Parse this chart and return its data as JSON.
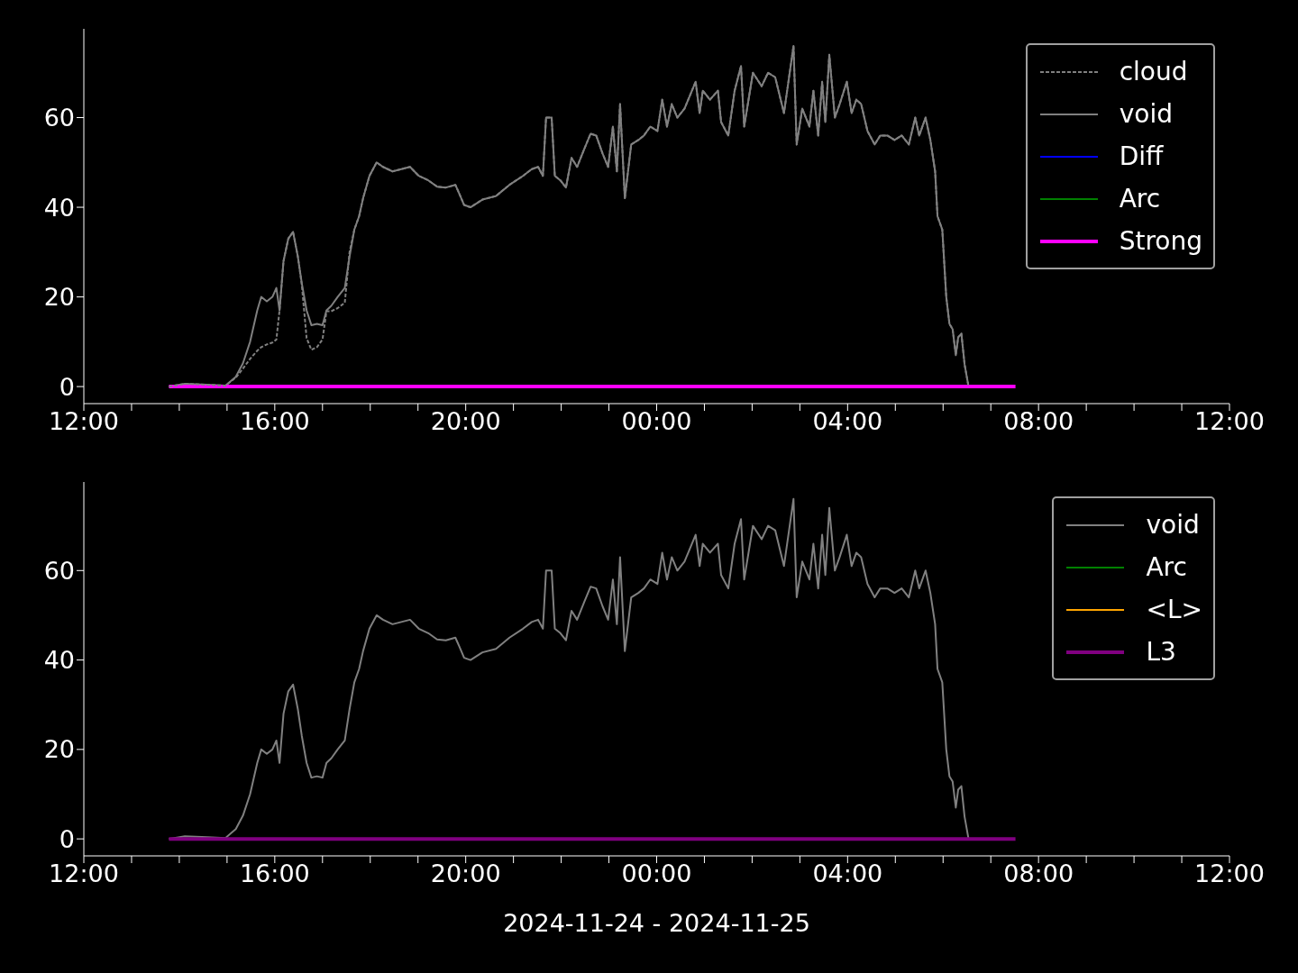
{
  "chart_data": [
    {
      "type": "line",
      "xlim": [
        "2024-11-24T12:00",
        "2024-11-25T12:00"
      ],
      "ylim": [
        -3.8,
        79.8
      ],
      "yticks": [
        0,
        20,
        40,
        60
      ],
      "xticks": [
        {
          "value": "2024-11-24T12:00",
          "label": "12:00"
        },
        {
          "value": "2024-11-24T13:00",
          "label": null
        },
        {
          "value": "2024-11-24T14:00",
          "label": null
        },
        {
          "value": "2024-11-24T15:00",
          "label": null
        },
        {
          "value": "2024-11-24T16:00",
          "label": "16:00"
        },
        {
          "value": "2024-11-24T17:00",
          "label": null
        },
        {
          "value": "2024-11-24T18:00",
          "label": null
        },
        {
          "value": "2024-11-24T19:00",
          "label": null
        },
        {
          "value": "2024-11-24T20:00",
          "label": "20:00"
        },
        {
          "value": "2024-11-24T21:00",
          "label": null
        },
        {
          "value": "2024-11-24T22:00",
          "label": null
        },
        {
          "value": "2024-11-24T23:00",
          "label": null
        },
        {
          "value": "2024-11-25T00:00",
          "label": "00:00"
        },
        {
          "value": "2024-11-25T01:00",
          "label": null
        },
        {
          "value": "2024-11-25T02:00",
          "label": null
        },
        {
          "value": "2024-11-25T03:00",
          "label": null
        },
        {
          "value": "2024-11-25T04:00",
          "label": "04:00"
        },
        {
          "value": "2024-11-25T05:00",
          "label": null
        },
        {
          "value": "2024-11-25T06:00",
          "label": null
        },
        {
          "value": "2024-11-25T07:00",
          "label": null
        },
        {
          "value": "2024-11-25T08:00",
          "label": "08:00"
        },
        {
          "value": "2024-11-25T09:00",
          "label": null
        },
        {
          "value": "2024-11-25T10:00",
          "label": null
        },
        {
          "value": "2024-11-25T11:00",
          "label": null
        },
        {
          "value": "2024-11-25T12:00",
          "label": "12:00"
        }
      ],
      "legend": "top right",
      "x": [
        "2024-11-24T13:47",
        "2024-11-24T14:07",
        "2024-11-24T14:35",
        "2024-11-24T14:58",
        "2024-11-24T15:11",
        "2024-11-24T15:20",
        "2024-11-24T15:29",
        "2024-11-24T15:38",
        "2024-11-24T15:43",
        "2024-11-24T15:50",
        "2024-11-24T15:57",
        "2024-11-24T16:02",
        "2024-11-24T16:06",
        "2024-11-24T16:11",
        "2024-11-24T16:17",
        "2024-11-24T16:23",
        "2024-11-24T16:29",
        "2024-11-24T16:34",
        "2024-11-24T16:40",
        "2024-11-24T16:46",
        "2024-11-24T16:53",
        "2024-11-24T17:00",
        "2024-11-24T17:05",
        "2024-11-24T17:11",
        "2024-11-24T17:19",
        "2024-11-24T17:28",
        "2024-11-24T17:34",
        "2024-11-24T17:40",
        "2024-11-24T17:46",
        "2024-11-24T17:51",
        "2024-11-24T17:59",
        "2024-11-24T18:08",
        "2024-11-24T18:16",
        "2024-11-24T18:28",
        "2024-11-24T18:39",
        "2024-11-24T18:50",
        "2024-11-24T19:01",
        "2024-11-24T19:13",
        "2024-11-24T19:24",
        "2024-11-24T19:35",
        "2024-11-24T19:47",
        "2024-11-24T19:52",
        "2024-11-24T19:58",
        "2024-11-24T20:06",
        "2024-11-24T20:21",
        "2024-11-24T20:38",
        "2024-11-24T20:55",
        "2024-11-24T21:12",
        "2024-11-24T21:23",
        "2024-11-24T21:31",
        "2024-11-24T21:37",
        "2024-11-24T21:41",
        "2024-11-24T21:48",
        "2024-11-24T21:52",
        "2024-11-24T21:59",
        "2024-11-24T22:06",
        "2024-11-24T22:13",
        "2024-11-24T22:20",
        "2024-11-24T22:29",
        "2024-11-24T22:37",
        "2024-11-24T22:44",
        "2024-11-24T22:52",
        "2024-11-24T22:59",
        "2024-11-24T23:05",
        "2024-11-24T23:10",
        "2024-11-24T23:14",
        "2024-11-24T23:20",
        "2024-11-24T23:28",
        "2024-11-24T23:37",
        "2024-11-24T23:44",
        "2024-11-24T23:52",
        "2024-11-25T00:01",
        "2024-11-25T00:07",
        "2024-11-25T00:13",
        "2024-11-25T00:19",
        "2024-11-25T00:26",
        "2024-11-25T00:35",
        "2024-11-25T00:49",
        "2024-11-25T00:54",
        "2024-11-25T00:58",
        "2024-11-25T01:07",
        "2024-11-25T01:17",
        "2024-11-25T01:21",
        "2024-11-25T01:30",
        "2024-11-25T01:38",
        "2024-11-25T01:46",
        "2024-11-25T01:50",
        "2024-11-25T02:01",
        "2024-11-25T02:12",
        "2024-11-25T02:20",
        "2024-11-25T02:29",
        "2024-11-25T02:40",
        "2024-11-25T02:52",
        "2024-11-25T02:56",
        "2024-11-25T03:03",
        "2024-11-25T03:12",
        "2024-11-25T03:17",
        "2024-11-25T03:23",
        "2024-11-25T03:28",
        "2024-11-25T03:32",
        "2024-11-25T03:37",
        "2024-11-25T03:44",
        "2024-11-25T03:50",
        "2024-11-25T03:59",
        "2024-11-25T04:05",
        "2024-11-25T04:11",
        "2024-11-25T04:17",
        "2024-11-25T04:25",
        "2024-11-25T04:34",
        "2024-11-25T04:41",
        "2024-11-25T04:50",
        "2024-11-25T04:59",
        "2024-11-25T05:08",
        "2024-11-25T05:17",
        "2024-11-25T05:25",
        "2024-11-25T05:30",
        "2024-11-25T05:38",
        "2024-11-25T05:44",
        "2024-11-25T05:50",
        "2024-11-25T05:53",
        "2024-11-25T05:59",
        "2024-11-25T06:04",
        "2024-11-25T06:08",
        "2024-11-25T06:12",
        "2024-11-25T06:16",
        "2024-11-25T06:19",
        "2024-11-25T06:23",
        "2024-11-25T06:27",
        "2024-11-25T06:32"
      ],
      "series": [
        {
          "name": "cloud",
          "color": "#808080",
          "line_style": "dashed",
          "values": [
            0,
            0.6,
            0.4,
            0.2,
            2,
            4,
            6.2,
            8,
            8.8,
            9.4,
            9.8,
            10.5,
            17,
            28,
            33,
            34.5,
            29,
            22.7,
            10.8,
            8.2,
            8.8,
            10.5,
            16.8,
            16.8,
            17.5,
            18.7,
            30,
            35,
            38,
            42,
            47,
            50,
            49,
            48,
            48.5,
            49,
            47,
            46,
            44.6,
            44.4,
            45,
            43,
            40.5,
            40,
            41.7,
            42.5,
            45,
            47,
            48.5,
            49,
            47,
            60,
            60,
            47,
            46,
            44.4,
            51,
            49,
            53,
            56.4,
            56,
            52,
            49,
            58,
            48,
            63,
            42,
            54,
            55,
            56,
            58,
            57,
            64,
            58,
            63,
            60,
            62,
            68,
            61,
            66,
            64,
            66,
            59,
            56,
            66,
            71.5,
            58,
            70,
            67,
            70,
            69,
            61,
            76,
            54,
            62,
            58,
            66,
            56,
            68,
            59,
            74,
            60,
            63,
            68,
            61,
            64,
            63,
            57,
            54,
            56,
            56,
            55,
            56,
            54,
            60,
            56,
            60,
            55,
            48,
            38,
            35,
            20,
            14,
            12.8,
            7,
            11,
            11.8,
            5,
            0
          ]
        },
        {
          "name": "void",
          "color": "#808080",
          "line_style": "solid",
          "values": [
            0,
            0.6,
            0.4,
            0.2,
            2.2,
            5.2,
            10,
            17,
            20,
            19,
            20,
            22,
            17,
            28,
            33,
            34.5,
            29,
            23,
            17,
            13.7,
            14,
            13.7,
            17,
            18,
            20,
            22,
            29,
            35,
            38,
            42,
            47,
            50,
            49,
            48,
            48.5,
            49,
            47,
            46,
            44.6,
            44.4,
            45,
            43,
            40.5,
            40,
            41.7,
            42.5,
            45,
            47,
            48.5,
            49,
            47,
            60,
            60,
            47,
            46,
            44.4,
            51,
            49,
            53,
            56.4,
            56,
            52,
            49,
            58,
            48,
            63,
            42,
            54,
            55,
            56,
            58,
            57,
            64,
            58,
            63,
            60,
            62,
            68,
            61,
            66,
            64,
            66,
            59,
            56,
            66,
            71.5,
            58,
            70,
            67,
            70,
            69,
            61,
            76,
            54,
            62,
            58,
            66,
            56,
            68,
            59,
            74,
            60,
            63,
            68,
            61,
            64,
            63,
            57,
            54,
            56,
            56,
            55,
            56,
            54,
            60,
            56,
            60,
            55,
            48,
            38,
            35,
            20,
            14,
            12.8,
            7,
            11,
            11.8,
            5,
            0
          ]
        },
        {
          "name": "Diff",
          "color": "#0000ff",
          "line_style": "solid",
          "values": [
            null,
            null,
            null,
            null,
            null,
            null,
            null,
            null,
            null,
            null,
            null,
            null,
            null,
            null,
            null,
            null,
            null,
            null,
            null,
            null,
            null,
            null,
            null,
            null,
            null,
            null,
            null,
            null,
            null,
            null,
            null,
            null,
            null,
            null,
            null,
            null,
            null,
            null,
            null,
            null,
            null,
            null,
            null,
            null,
            null,
            null,
            null,
            null,
            null,
            null,
            null,
            null,
            null,
            null,
            null,
            null,
            null,
            null,
            null,
            null,
            null,
            null,
            null,
            null,
            null,
            null,
            null,
            null,
            null,
            null,
            null,
            null,
            null,
            null,
            null,
            null,
            null,
            null,
            null,
            null,
            null,
            null,
            null,
            null,
            null,
            null,
            null,
            null,
            null,
            null,
            null,
            null,
            null,
            null,
            null,
            null,
            null,
            null,
            null,
            null,
            null,
            null,
            null,
            null,
            null,
            null,
            null,
            null,
            null,
            null,
            null,
            null,
            null,
            null,
            null,
            null,
            null,
            null,
            null,
            null,
            null,
            null,
            null,
            null,
            null,
            null,
            null,
            null,
            null
          ]
        },
        {
          "name": "Arc",
          "color": "#008000",
          "line_style": "solid",
          "values": [
            null,
            null,
            null,
            null,
            null,
            null,
            null,
            null,
            null,
            null,
            null,
            null,
            null,
            null,
            null,
            null,
            null,
            null,
            null,
            null,
            null,
            null,
            null,
            null,
            null,
            null,
            null,
            null,
            null,
            null,
            null,
            null,
            null,
            null,
            null,
            null,
            null,
            null,
            null,
            null,
            null,
            null,
            null,
            null,
            null,
            null,
            null,
            null,
            null,
            null,
            null,
            null,
            null,
            null,
            null,
            null,
            null,
            null,
            null,
            null,
            null,
            null,
            null,
            null,
            null,
            null,
            null,
            null,
            null,
            null,
            null,
            null,
            null,
            null,
            null,
            null,
            null,
            null,
            null,
            null,
            null,
            null,
            null,
            null,
            null,
            null,
            null,
            null,
            null,
            null,
            null,
            null,
            null,
            null,
            null,
            null,
            null,
            null,
            null,
            null,
            null,
            null,
            null,
            null,
            null,
            null,
            null,
            null,
            null,
            null,
            null,
            null,
            null,
            null,
            null,
            null,
            null,
            null,
            null,
            null,
            null,
            null,
            null,
            null,
            null,
            null,
            null,
            null,
            null
          ]
        },
        {
          "name": "Strong",
          "color": "#ff00ff",
          "line_style": "solid",
          "x": [
            "2024-11-24T13:47",
            "2024-11-25T07:31"
          ],
          "values": [
            0,
            0
          ]
        }
      ]
    },
    {
      "type": "line",
      "xlim": [
        "2024-11-24T12:00",
        "2024-11-25T12:00"
      ],
      "ylim": [
        -3.8,
        79.8
      ],
      "yticks": [
        0,
        20,
        40,
        60
      ],
      "xlabel": "2024-11-24 - 2024-11-25",
      "xticks": [
        {
          "value": "2024-11-24T12:00",
          "label": "12:00"
        },
        {
          "value": "2024-11-24T13:00",
          "label": null
        },
        {
          "value": "2024-11-24T14:00",
          "label": null
        },
        {
          "value": "2024-11-24T15:00",
          "label": null
        },
        {
          "value": "2024-11-24T16:00",
          "label": "16:00"
        },
        {
          "value": "2024-11-24T17:00",
          "label": null
        },
        {
          "value": "2024-11-24T18:00",
          "label": null
        },
        {
          "value": "2024-11-24T19:00",
          "label": null
        },
        {
          "value": "2024-11-24T20:00",
          "label": "20:00"
        },
        {
          "value": "2024-11-24T21:00",
          "label": null
        },
        {
          "value": "2024-11-24T22:00",
          "label": null
        },
        {
          "value": "2024-11-24T23:00",
          "label": null
        },
        {
          "value": "2024-11-25T00:00",
          "label": "00:00"
        },
        {
          "value": "2024-11-25T01:00",
          "label": null
        },
        {
          "value": "2024-11-25T02:00",
          "label": null
        },
        {
          "value": "2024-11-25T03:00",
          "label": null
        },
        {
          "value": "2024-11-25T04:00",
          "label": "04:00"
        },
        {
          "value": "2024-11-25T05:00",
          "label": null
        },
        {
          "value": "2024-11-25T06:00",
          "label": null
        },
        {
          "value": "2024-11-25T07:00",
          "label": null
        },
        {
          "value": "2024-11-25T08:00",
          "label": "08:00"
        },
        {
          "value": "2024-11-25T09:00",
          "label": null
        },
        {
          "value": "2024-11-25T10:00",
          "label": null
        },
        {
          "value": "2024-11-25T11:00",
          "label": null
        },
        {
          "value": "2024-11-25T12:00",
          "label": "12:00"
        }
      ],
      "legend": "top right",
      "x": [
        "2024-11-24T13:47",
        "2024-11-24T14:07",
        "2024-11-24T14:35",
        "2024-11-24T14:58",
        "2024-11-24T15:11",
        "2024-11-24T15:20",
        "2024-11-24T15:29",
        "2024-11-24T15:38",
        "2024-11-24T15:43",
        "2024-11-24T15:50",
        "2024-11-24T15:57",
        "2024-11-24T16:02",
        "2024-11-24T16:06",
        "2024-11-24T16:11",
        "2024-11-24T16:17",
        "2024-11-24T16:23",
        "2024-11-24T16:29",
        "2024-11-24T16:34",
        "2024-11-24T16:40",
        "2024-11-24T16:46",
        "2024-11-24T16:53",
        "2024-11-24T17:00",
        "2024-11-24T17:05",
        "2024-11-24T17:11",
        "2024-11-24T17:19",
        "2024-11-24T17:28",
        "2024-11-24T17:34",
        "2024-11-24T17:40",
        "2024-11-24T17:46",
        "2024-11-24T17:51",
        "2024-11-24T17:59",
        "2024-11-24T18:08",
        "2024-11-24T18:16",
        "2024-11-24T18:28",
        "2024-11-24T18:39",
        "2024-11-24T18:50",
        "2024-11-24T19:01",
        "2024-11-24T19:13",
        "2024-11-24T19:24",
        "2024-11-24T19:35",
        "2024-11-24T19:47",
        "2024-11-24T19:52",
        "2024-11-24T19:58",
        "2024-11-24T20:06",
        "2024-11-24T20:21",
        "2024-11-24T20:38",
        "2024-11-24T20:55",
        "2024-11-24T21:12",
        "2024-11-24T21:23",
        "2024-11-24T21:31",
        "2024-11-24T21:37",
        "2024-11-24T21:41",
        "2024-11-24T21:48",
        "2024-11-24T21:52",
        "2024-11-24T21:59",
        "2024-11-24T22:06",
        "2024-11-24T22:13",
        "2024-11-24T22:20",
        "2024-11-24T22:29",
        "2024-11-24T22:37",
        "2024-11-24T22:44",
        "2024-11-24T22:52",
        "2024-11-24T22:59",
        "2024-11-24T23:05",
        "2024-11-24T23:10",
        "2024-11-24T23:14",
        "2024-11-24T23:20",
        "2024-11-24T23:28",
        "2024-11-24T23:37",
        "2024-11-24T23:44",
        "2024-11-24T23:52",
        "2024-11-25T00:01",
        "2024-11-25T00:07",
        "2024-11-25T00:13",
        "2024-11-25T00:19",
        "2024-11-25T00:26",
        "2024-11-25T00:35",
        "2024-11-25T00:49",
        "2024-11-25T00:54",
        "2024-11-25T00:58",
        "2024-11-25T01:07",
        "2024-11-25T01:17",
        "2024-11-25T01:21",
        "2024-11-25T01:30",
        "2024-11-25T01:38",
        "2024-11-25T01:46",
        "2024-11-25T01:50",
        "2024-11-25T02:01",
        "2024-11-25T02:12",
        "2024-11-25T02:20",
        "2024-11-25T02:29",
        "2024-11-25T02:40",
        "2024-11-25T02:52",
        "2024-11-25T02:56",
        "2024-11-25T03:03",
        "2024-11-25T03:12",
        "2024-11-25T03:17",
        "2024-11-25T03:23",
        "2024-11-25T03:28",
        "2024-11-25T03:32",
        "2024-11-25T03:37",
        "2024-11-25T03:44",
        "2024-11-25T03:50",
        "2024-11-25T03:59",
        "2024-11-25T04:05",
        "2024-11-25T04:11",
        "2024-11-25T04:17",
        "2024-11-25T04:25",
        "2024-11-25T04:34",
        "2024-11-25T04:41",
        "2024-11-25T04:50",
        "2024-11-25T04:59",
        "2024-11-25T05:08",
        "2024-11-25T05:17",
        "2024-11-25T05:25",
        "2024-11-25T05:30",
        "2024-11-25T05:38",
        "2024-11-25T05:44",
        "2024-11-25T05:50",
        "2024-11-25T05:53",
        "2024-11-25T05:59",
        "2024-11-25T06:04",
        "2024-11-25T06:08",
        "2024-11-25T06:12",
        "2024-11-25T06:16",
        "2024-11-25T06:19",
        "2024-11-25T06:23",
        "2024-11-25T06:27",
        "2024-11-25T06:32"
      ],
      "series": [
        {
          "name": "void",
          "color": "#808080",
          "line_style": "solid",
          "values": [
            0,
            0.6,
            0.4,
            0.2,
            2.2,
            5.2,
            10,
            17,
            20,
            19,
            20,
            22,
            17,
            28,
            33,
            34.5,
            29,
            23,
            17,
            13.7,
            14,
            13.7,
            17,
            18,
            20,
            22,
            29,
            35,
            38,
            42,
            47,
            50,
            49,
            48,
            48.5,
            49,
            47,
            46,
            44.6,
            44.4,
            45,
            43,
            40.5,
            40,
            41.7,
            42.5,
            45,
            47,
            48.5,
            49,
            47,
            60,
            60,
            47,
            46,
            44.4,
            51,
            49,
            53,
            56.4,
            56,
            52,
            49,
            58,
            48,
            63,
            42,
            54,
            55,
            56,
            58,
            57,
            64,
            58,
            63,
            60,
            62,
            68,
            61,
            66,
            64,
            66,
            59,
            56,
            66,
            71.5,
            58,
            70,
            67,
            70,
            69,
            61,
            76,
            54,
            62,
            58,
            66,
            56,
            68,
            59,
            74,
            60,
            63,
            68,
            61,
            64,
            63,
            57,
            54,
            56,
            56,
            55,
            56,
            54,
            60,
            56,
            60,
            55,
            48,
            38,
            35,
            20,
            14,
            12.8,
            7,
            11,
            11.8,
            5,
            0
          ]
        },
        {
          "name": "Arc",
          "color": "#008000",
          "line_style": "solid",
          "values": [
            null,
            null,
            null,
            null,
            null,
            null,
            null,
            null,
            null,
            null,
            null,
            null,
            null,
            null,
            null,
            null,
            null,
            null,
            null,
            null,
            null,
            null,
            null,
            null,
            null,
            null,
            null,
            null,
            null,
            null,
            null,
            null,
            null,
            null,
            null,
            null,
            null,
            null,
            null,
            null,
            null,
            null,
            null,
            null,
            null,
            null,
            null,
            null,
            null,
            null,
            null,
            null,
            null,
            null,
            null,
            null,
            null,
            null,
            null,
            null,
            null,
            null,
            null,
            null,
            null,
            null,
            null,
            null,
            null,
            null,
            null,
            null,
            null,
            null,
            null,
            null,
            null,
            null,
            null,
            null,
            null,
            null,
            null,
            null,
            null,
            null,
            null,
            null,
            null,
            null,
            null,
            null,
            null,
            null,
            null,
            null,
            null,
            null,
            null,
            null,
            null,
            null,
            null,
            null,
            null,
            null,
            null,
            null,
            null,
            null,
            null,
            null,
            null,
            null,
            null,
            null,
            null,
            null,
            null,
            null,
            null,
            null,
            null,
            null,
            null,
            null,
            null,
            null,
            null
          ]
        },
        {
          "name": "<L>",
          "color": "#ffa500",
          "line_style": "solid",
          "values": [
            null,
            null,
            null,
            null,
            null,
            null,
            null,
            null,
            null,
            null,
            null,
            null,
            null,
            null,
            null,
            null,
            null,
            null,
            null,
            null,
            null,
            null,
            null,
            null,
            null,
            null,
            null,
            null,
            null,
            null,
            null,
            null,
            null,
            null,
            null,
            null,
            null,
            null,
            null,
            null,
            null,
            null,
            null,
            null,
            null,
            null,
            null,
            null,
            null,
            null,
            null,
            null,
            null,
            null,
            null,
            null,
            null,
            null,
            null,
            null,
            null,
            null,
            null,
            null,
            null,
            null,
            null,
            null,
            null,
            null,
            null,
            null,
            null,
            null,
            null,
            null,
            null,
            null,
            null,
            null,
            null,
            null,
            null,
            null,
            null,
            null,
            null,
            null,
            null,
            null,
            null,
            null,
            null,
            null,
            null,
            null,
            null,
            null,
            null,
            null,
            null,
            null,
            null,
            null,
            null,
            null,
            null,
            null,
            null,
            null,
            null,
            null,
            null,
            null,
            null,
            null,
            null,
            null,
            null,
            null,
            null,
            null,
            null,
            null,
            null,
            null,
            null,
            null,
            null
          ]
        },
        {
          "name": "L3",
          "color": "#800080",
          "line_style": "solid",
          "x": [
            "2024-11-24T13:47",
            "2024-11-25T07:31"
          ],
          "values": [
            0,
            0
          ]
        }
      ]
    }
  ]
}
